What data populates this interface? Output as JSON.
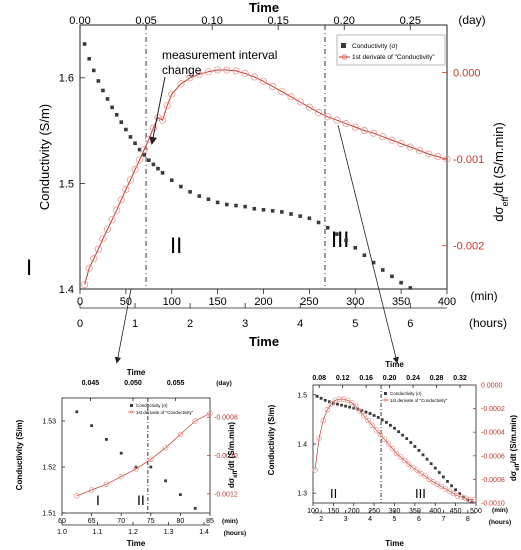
{
  "figure": {
    "main_top_title": "Time",
    "main_top_unit": "(day)",
    "main_bottom_title": "Time",
    "main_bottom_unit_min": "(min)",
    "main_bottom_unit_hours": "(hours)",
    "main_left_label": "Conductivity (S/m)",
    "main_right_label": "dσeff/dt (S/m.min)",
    "annotation": "measurement interval change",
    "annotation_line1": "measurement interval",
    "annotation_line2": "change",
    "legend_cond": "Conductivity (σ)",
    "legend_deriv": "1st derivate of \"Conductivity\""
  },
  "chart_data": [
    {
      "id": "main",
      "type": "scatter",
      "x_label": "Time (min)",
      "x_range": [
        0,
        400
      ],
      "x_ticks": [
        0,
        50,
        100,
        150,
        200,
        250,
        300,
        350,
        400
      ],
      "hours_ticks": [
        0,
        1,
        2,
        3,
        4,
        5,
        6
      ],
      "day_ticks": [
        "0.00",
        "0.05",
        "0.10",
        "0.15",
        "0.20",
        "0.25"
      ],
      "y_left": {
        "label": "Conductivity (S/m)",
        "range": [
          1.4,
          1.65
        ],
        "ticks": [
          "1.4",
          "1.5",
          "1.6"
        ]
      },
      "y_right": {
        "label": "dσeff/dt (S/m.min)",
        "range": [
          -0.0025,
          0.00055
        ],
        "ticks": [
          "0.000",
          "-0.001",
          "-0.002"
        ]
      },
      "regions": [
        "I",
        "II",
        "III"
      ],
      "dividers_min": [
        72,
        267
      ],
      "series": [
        {
          "name": "Conductivity (σ)",
          "axis": "left",
          "color": "#3a3a3a",
          "x": [
            5,
            10,
            15,
            20,
            25,
            30,
            35,
            40,
            45,
            50,
            55,
            60,
            65,
            70,
            75,
            80,
            85,
            90,
            100,
            110,
            120,
            130,
            140,
            150,
            160,
            170,
            180,
            190,
            200,
            210,
            220,
            230,
            240,
            250,
            260,
            270,
            280,
            290,
            300,
            310,
            320,
            330,
            340,
            350,
            360
          ],
          "y": [
            1.632,
            1.618,
            1.607,
            1.597,
            1.588,
            1.58,
            1.572,
            1.565,
            1.558,
            1.551,
            1.544,
            1.538,
            1.532,
            1.527,
            1.522,
            1.518,
            1.514,
            1.51,
            1.503,
            1.497,
            1.492,
            1.488,
            1.485,
            1.482,
            1.48,
            1.479,
            1.478,
            1.476,
            1.475,
            1.474,
            1.473,
            1.471,
            1.469,
            1.467,
            1.463,
            1.458,
            1.452,
            1.446,
            1.439,
            1.432,
            1.425,
            1.418,
            1.412,
            1.406,
            1.401
          ]
        },
        {
          "name": "1st derivate of \"Conductivity\"",
          "axis": "right",
          "color": "#d9534f",
          "x": [
            5,
            10,
            15,
            20,
            25,
            30,
            35,
            40,
            45,
            50,
            55,
            60,
            65,
            70,
            75,
            80,
            85,
            90,
            95,
            100,
            110,
            120,
            130,
            140,
            150,
            160,
            170,
            180,
            190,
            200,
            210,
            220,
            230,
            240,
            250,
            260,
            270,
            280,
            290,
            300,
            310,
            320,
            330,
            340,
            350,
            360,
            370,
            380,
            390,
            400
          ],
          "y": [
            -0.00245,
            -0.00226,
            -0.00215,
            -0.00204,
            -0.00192,
            -0.00181,
            -0.0017,
            -0.00159,
            -0.00147,
            -0.00135,
            -0.00124,
            -0.00112,
            -0.00101,
            -0.00089,
            -0.00077,
            -0.00064,
            -0.00052,
            -0.00055,
            -0.00038,
            -0.00025,
            -0.00013,
            -6e-05,
            -2e-05,
            1e-05,
            3e-05,
            3e-05,
            2e-05,
            -1e-05,
            -5e-05,
            -0.0001,
            -0.00016,
            -0.00022,
            -0.00028,
            -0.00034,
            -0.0004,
            -0.00046,
            -0.00051,
            -0.00055,
            -0.00059,
            -0.00063,
            -0.00067,
            -0.0007,
            -0.00074,
            -0.00078,
            -0.00082,
            -0.00086,
            -0.0009,
            -0.00094,
            -0.00097,
            -0.001
          ]
        }
      ]
    },
    {
      "id": "inset_left",
      "type": "scatter",
      "x_range": [
        60,
        85
      ],
      "x_ticks": [
        60,
        65,
        70,
        75,
        80,
        85
      ],
      "hours_ticks": [
        "1.0",
        "1.1",
        "1.2",
        "1.3",
        "1.4"
      ],
      "day_ticks": [
        "0.045",
        "0.050",
        "0.055"
      ],
      "x_unit": "(min)",
      "hours_unit": "(hours)",
      "day_unit": "(day)",
      "x_title": "Time",
      "top_title": "Time",
      "y_left": {
        "label": "Conductivity (S/m)",
        "range": [
          1.51,
          1.535
        ],
        "ticks": [
          "1.51",
          "1.52",
          "1.53"
        ]
      },
      "y_right": {
        "label": "dσeff/dt (S/m.min)",
        "range": [
          -0.0013,
          -0.0007
        ],
        "ticks": [
          "-0.0008",
          "-0.0010",
          "-0.0012"
        ]
      },
      "regions": [
        "I",
        "II"
      ],
      "dividers_min": [
        74.5
      ],
      "series": [
        {
          "name": "Conductivity (σ)",
          "axis": "left",
          "color": "#3a3a3a",
          "x": [
            62.5,
            65,
            67.5,
            70,
            72.5,
            75,
            77.5,
            80,
            82.5
          ],
          "y": [
            1.532,
            1.529,
            1.526,
            1.523,
            1.52,
            1.52,
            1.517,
            1.514,
            1.511
          ]
        },
        {
          "name": "1st derivate of \"Conductivity\"",
          "axis": "right",
          "color": "#d9534f",
          "x": [
            62.5,
            65,
            67.5,
            70,
            72.5,
            75,
            77.5,
            80,
            82.5,
            85
          ],
          "y": [
            -0.00121,
            -0.00118,
            -0.00115,
            -0.00111,
            -0.00107,
            -0.00102,
            -0.00096,
            -0.00089,
            -0.00082,
            -0.00078
          ]
        }
      ]
    },
    {
      "id": "inset_right",
      "type": "scatter",
      "x_range": [
        100,
        500
      ],
      "x_ticks": [
        100,
        150,
        200,
        250,
        300,
        350,
        400,
        450,
        500
      ],
      "hours_ticks": [
        "2",
        "3",
        "4",
        "5",
        "6",
        "7",
        "8"
      ],
      "day_ticks": [
        "0.08",
        "0.12",
        "0.16",
        "0.20",
        "0.24",
        "0.28",
        "0.32"
      ],
      "x_unit": "(min)",
      "hours_unit": "(hours)",
      "x_title": "Time",
      "top_title": "Time",
      "y_left": {
        "label": "Conductivity (S/m)",
        "range": [
          1.28,
          1.52
        ],
        "ticks": [
          "1.3",
          "1.4",
          "1.5"
        ]
      },
      "y_right": {
        "label": "dσeff/dt (S/m.min)",
        "range": [
          -0.001,
          0.0
        ],
        "ticks": [
          "0.0000",
          "-0.0002",
          "-0.0004",
          "-0.0006",
          "-0.0008",
          "-0.0010"
        ]
      },
      "regions": [
        "II",
        "III"
      ],
      "dividers_min": [
        267
      ],
      "series": [
        {
          "name": "Conductivity (σ)",
          "axis": "left",
          "color": "#3a3a3a",
          "x": [
            110,
            120,
            130,
            140,
            150,
            160,
            170,
            180,
            190,
            200,
            210,
            220,
            230,
            240,
            250,
            260,
            270,
            280,
            290,
            300,
            310,
            320,
            330,
            340,
            350,
            360,
            370,
            380,
            390,
            400,
            410,
            420,
            430,
            440,
            450,
            460,
            470,
            480,
            490
          ],
          "y": [
            1.497,
            1.493,
            1.489,
            1.486,
            1.483,
            1.481,
            1.479,
            1.477,
            1.475,
            1.473,
            1.471,
            1.468,
            1.465,
            1.462,
            1.458,
            1.454,
            1.449,
            1.444,
            1.438,
            1.432,
            1.425,
            1.418,
            1.411,
            1.403,
            1.395,
            1.387,
            1.378,
            1.369,
            1.36,
            1.351,
            1.342,
            1.333,
            1.324,
            1.315,
            1.307,
            1.299,
            1.292,
            1.286,
            1.282
          ]
        },
        {
          "name": "1st derivate of \"Conductivity\"",
          "axis": "right",
          "color": "#d9534f",
          "x": [
            105,
            115,
            125,
            135,
            145,
            155,
            165,
            175,
            185,
            195,
            205,
            215,
            225,
            235,
            245,
            255,
            265,
            275,
            285,
            295,
            305,
            315,
            325,
            335,
            345,
            355,
            365,
            375,
            385,
            395,
            405,
            415,
            425,
            435,
            445,
            455,
            465,
            475,
            485,
            495
          ],
          "y": [
            -0.00072,
            -0.00045,
            -0.0003,
            -0.00021,
            -0.00016,
            -0.00013,
            -0.00012,
            -0.00012,
            -0.00013,
            -0.00015,
            -0.00018,
            -0.00022,
            -0.00026,
            -0.0003,
            -0.00034,
            -0.00038,
            -0.00042,
            -0.00046,
            -0.0005,
            -0.00054,
            -0.00058,
            -0.00061,
            -0.00064,
            -0.00067,
            -0.0007,
            -0.00072,
            -0.00075,
            -0.00077,
            -0.0008,
            -0.00082,
            -0.00084,
            -0.00086,
            -0.00088,
            -0.0009,
            -0.00092,
            -0.00094,
            -0.00095,
            -0.00096,
            -0.00097,
            -0.00097
          ]
        }
      ]
    }
  ]
}
